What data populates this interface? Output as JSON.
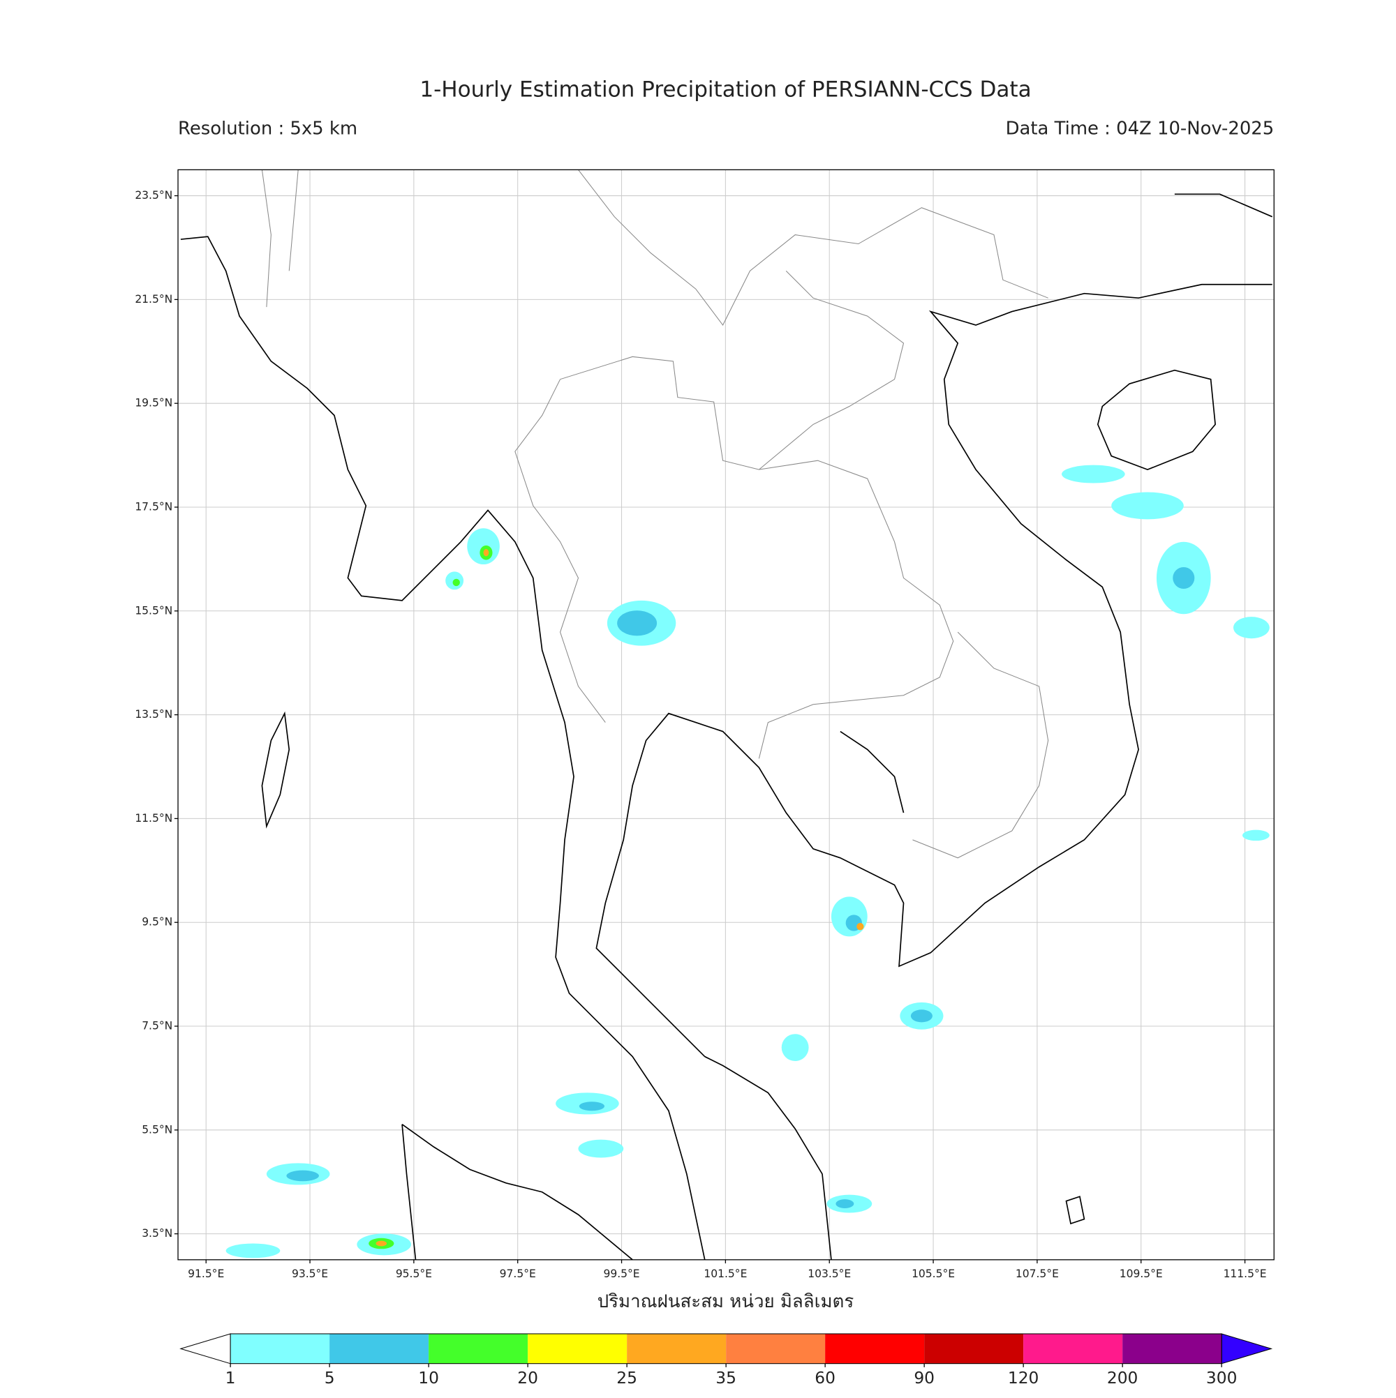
{
  "header": {
    "title": "1-Hourly Estimation Precipitation of PERSIANN-CCS Data",
    "resolution": "Resolution : 5x5 km",
    "data_time": "Data Time : 04Z 10-Nov-2025"
  },
  "map": {
    "xlim": [
      90.96,
      112.06
    ],
    "ylim": [
      3.0,
      24.0
    ],
    "grid": true,
    "xticks": [
      {
        "value": 91.5,
        "label": "91.5°E"
      },
      {
        "value": 93.5,
        "label": "93.5°E"
      },
      {
        "value": 95.5,
        "label": "95.5°E"
      },
      {
        "value": 97.5,
        "label": "97.5°E"
      },
      {
        "value": 99.5,
        "label": "99.5°E"
      },
      {
        "value": 101.5,
        "label": "101.5°E"
      },
      {
        "value": 103.5,
        "label": "103.5°E"
      },
      {
        "value": 105.5,
        "label": "105.5°E"
      },
      {
        "value": 107.5,
        "label": "107.5°E"
      },
      {
        "value": 109.5,
        "label": "109.5°E"
      },
      {
        "value": 111.5,
        "label": "111.5°E"
      }
    ],
    "yticks": [
      {
        "value": 23.5,
        "label": "23.5°N"
      },
      {
        "value": 21.5,
        "label": "21.5°N"
      },
      {
        "value": 19.5,
        "label": "19.5°N"
      },
      {
        "value": 17.5,
        "label": "17.5°N"
      },
      {
        "value": 15.5,
        "label": "15.5°N"
      },
      {
        "value": 13.5,
        "label": "13.5°N"
      },
      {
        "value": 11.5,
        "label": "11.5°N"
      },
      {
        "value": 9.5,
        "label": "9.5°N"
      },
      {
        "value": 7.5,
        "label": "7.5°N"
      },
      {
        "value": 5.5,
        "label": "5.5°N"
      },
      {
        "value": 3.5,
        "label": "3.5°N"
      }
    ],
    "xlabel": "ปริมาณฝนสะสม หน่วย มิลลิเมตร"
  },
  "colorbar": {
    "levels": [
      1,
      5,
      10,
      20,
      25,
      35,
      60,
      90,
      120,
      200,
      300
    ],
    "colors": [
      "#80ffff",
      "#40c8e8",
      "#44ff2a",
      "#ffff00",
      "#ffa820",
      "#ff8040",
      "#ff0000",
      "#cc0000",
      "#ff1a8c",
      "#8b008b"
    ],
    "under_color": "#ffffff",
    "over_color": "#3300ff"
  }
}
